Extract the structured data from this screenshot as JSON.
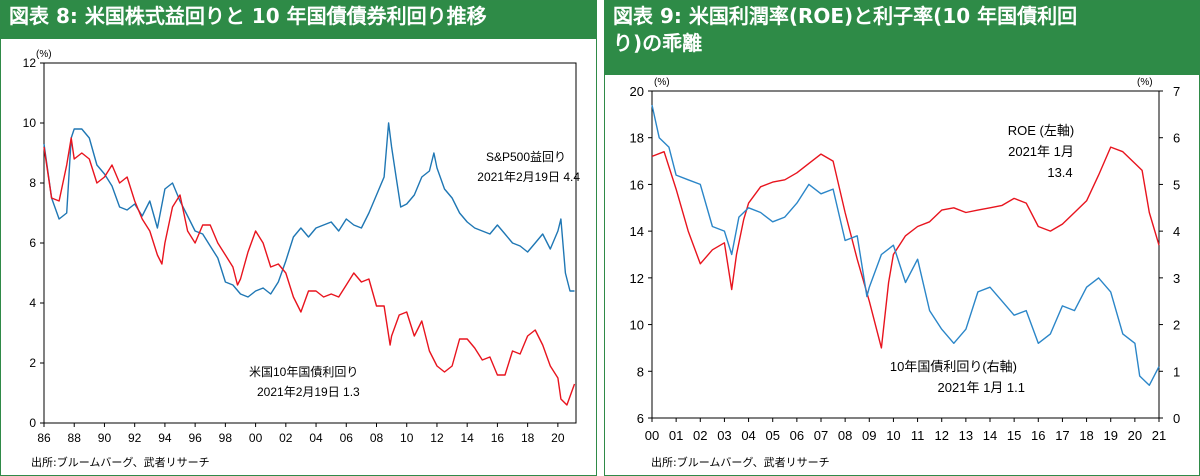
{
  "charts": [
    {
      "title": "図表 8: 米国株式益回りと 10 年国債債券利回り推移",
      "source": "出所:ブルームバーグ、武者リサーチ",
      "unit_left": "(%)"
    },
    {
      "title_line1": "図表 9: 米国利潤率(ROE)と利子率(10 年国債利回",
      "title_line2": "り)の乖離",
      "source": "出所:ブルームバーグ、武者リサーチ",
      "unit_left": "(%)",
      "unit_right": "(%)"
    }
  ],
  "chart_data": [
    {
      "type": "line",
      "title": "図表 8: 米国株式益回りと 10 年国債債券利回り推移",
      "x_tick_labels": [
        "86",
        "88",
        "90",
        "92",
        "94",
        "96",
        "98",
        "00",
        "02",
        "04",
        "06",
        "08",
        "10",
        "12",
        "14",
        "16",
        "18",
        "20"
      ],
      "xlim": [
        1986,
        2021.2
      ],
      "ylim": [
        0,
        12
      ],
      "y_ticks": [
        0,
        2,
        4,
        6,
        8,
        10,
        12
      ],
      "y_unit": "(%)",
      "series": [
        {
          "name": "S&P500益回り",
          "color": "#1f77b4",
          "x": [
            1986,
            1986.5,
            1987,
            1987.5,
            1987.8,
            1988,
            1988.5,
            1989,
            1989.5,
            1990,
            1990.5,
            1991,
            1991.5,
            1992,
            1992.5,
            1993,
            1993.5,
            1994,
            1994.5,
            1995,
            1995.5,
            1996,
            1996.5,
            1997,
            1997.5,
            1998,
            1998.5,
            1999,
            1999.5,
            2000,
            2000.5,
            2001,
            2001.5,
            2002,
            2002.5,
            2003,
            2003.5,
            2004,
            2004.5,
            2005,
            2005.5,
            2006,
            2006.5,
            2007,
            2007.5,
            2008,
            2008.5,
            2008.8,
            2009,
            2009.3,
            2009.6,
            2010,
            2010.5,
            2011,
            2011.5,
            2011.8,
            2012,
            2012.5,
            2013,
            2013.5,
            2014,
            2014.5,
            2015,
            2015.5,
            2016,
            2016.5,
            2017,
            2017.5,
            2018,
            2018.5,
            2019,
            2019.5,
            2020,
            2020.2,
            2020.5,
            2020.8,
            2021.1
          ],
          "y": [
            9.3,
            7.5,
            6.8,
            7.0,
            9.5,
            9.8,
            9.8,
            9.5,
            8.6,
            8.3,
            7.9,
            7.2,
            7.1,
            7.3,
            6.9,
            7.4,
            6.5,
            7.8,
            8.0,
            7.4,
            6.9,
            6.4,
            6.3,
            5.9,
            5.5,
            4.7,
            4.6,
            4.3,
            4.2,
            4.4,
            4.5,
            4.3,
            4.7,
            5.4,
            6.2,
            6.5,
            6.2,
            6.5,
            6.6,
            6.7,
            6.4,
            6.8,
            6.6,
            6.5,
            7.0,
            7.6,
            8.2,
            10.0,
            9.2,
            8.2,
            7.2,
            7.3,
            7.6,
            8.2,
            8.4,
            9.0,
            8.5,
            7.8,
            7.5,
            7.0,
            6.7,
            6.5,
            6.4,
            6.3,
            6.6,
            6.3,
            6.0,
            5.9,
            5.7,
            6.0,
            6.3,
            5.8,
            6.4,
            6.8,
            5.0,
            4.4,
            4.4
          ]
        },
        {
          "name": "米国10年国債利回り",
          "color": "#e8141e",
          "x": [
            1986,
            1986.5,
            1987,
            1987.5,
            1987.8,
            1988,
            1988.5,
            1989,
            1989.5,
            1990,
            1990.5,
            1991,
            1991.5,
            1992,
            1992.5,
            1993,
            1993.5,
            1993.8,
            1994,
            1994.5,
            1995,
            1995.5,
            1996,
            1996.5,
            1997,
            1997.5,
            1998,
            1998.5,
            1998.8,
            1999,
            1999.5,
            2000,
            2000.5,
            2001,
            2001.5,
            2002,
            2002.5,
            2003,
            2003.5,
            2004,
            2004.5,
            2005,
            2005.5,
            2006,
            2006.5,
            2007,
            2007.5,
            2008,
            2008.5,
            2008.9,
            2009,
            2009.5,
            2010,
            2010.5,
            2011,
            2011.5,
            2012,
            2012.5,
            2013,
            2013.5,
            2014,
            2014.5,
            2015,
            2015.5,
            2016,
            2016.5,
            2017,
            2017.5,
            2018,
            2018.5,
            2019,
            2019.5,
            2020,
            2020.2,
            2020.6,
            2021.1
          ],
          "y": [
            9.2,
            7.5,
            7.4,
            8.6,
            9.5,
            8.8,
            9.0,
            8.8,
            8.0,
            8.2,
            8.6,
            8.0,
            8.2,
            7.4,
            6.8,
            6.4,
            5.6,
            5.3,
            6.0,
            7.2,
            7.6,
            6.4,
            6.0,
            6.6,
            6.6,
            6.0,
            5.6,
            5.2,
            4.6,
            4.8,
            5.7,
            6.4,
            6.0,
            5.2,
            5.3,
            5.0,
            4.2,
            3.7,
            4.4,
            4.4,
            4.2,
            4.3,
            4.2,
            4.6,
            5.0,
            4.7,
            4.8,
            3.9,
            3.9,
            2.6,
            2.9,
            3.6,
            3.7,
            2.9,
            3.4,
            2.4,
            1.9,
            1.7,
            1.9,
            2.8,
            2.8,
            2.5,
            2.1,
            2.2,
            1.6,
            1.6,
            2.4,
            2.3,
            2.9,
            3.1,
            2.6,
            1.9,
            1.5,
            0.8,
            0.6,
            1.3
          ]
        }
      ],
      "annotations": [
        {
          "text": "S&P500益回り"
        },
        {
          "text": "2021年2月19日  4.4"
        },
        {
          "text": "米国10年国債利回り"
        },
        {
          "text": "2021年2月19日    1.3"
        }
      ]
    },
    {
      "type": "line",
      "title": "図表 9: 米国利潤率(ROE)と利子率(10 年国債利回り)の乖離",
      "x_tick_labels": [
        "00",
        "01",
        "02",
        "03",
        "04",
        "05",
        "06",
        "07",
        "08",
        "09",
        "10",
        "11",
        "12",
        "13",
        "14",
        "15",
        "16",
        "17",
        "18",
        "19",
        "20",
        "21"
      ],
      "xlim": [
        2000,
        2021
      ],
      "ylim_left": [
        6,
        20
      ],
      "y_ticks_left": [
        6,
        8,
        10,
        12,
        14,
        16,
        18,
        20
      ],
      "ylim_right": [
        0,
        7
      ],
      "y_ticks_right": [
        0,
        1,
        2,
        3,
        4,
        5,
        6,
        7
      ],
      "series": [
        {
          "name": "ROE (左軸)",
          "axis": "left",
          "color": "#e8141e",
          "x": [
            2000,
            2000.5,
            2001,
            2001.5,
            2002,
            2002.5,
            2003,
            2003.3,
            2003.5,
            2003.8,
            2004,
            2004.5,
            2005,
            2005.5,
            2006,
            2006.5,
            2007,
            2007.5,
            2008,
            2008.5,
            2009,
            2009.5,
            2009.8,
            2010,
            2010.5,
            2011,
            2011.5,
            2012,
            2012.5,
            2013,
            2013.5,
            2014,
            2014.5,
            2015,
            2015.5,
            2016,
            2016.5,
            2017,
            2017.5,
            2018,
            2018.5,
            2019,
            2019.5,
            2020,
            2020.3,
            2020.6,
            2021
          ],
          "y": [
            17.2,
            17.4,
            15.8,
            14.0,
            12.6,
            13.2,
            13.5,
            11.5,
            13.0,
            14.5,
            15.2,
            15.9,
            16.1,
            16.2,
            16.5,
            16.9,
            17.3,
            17.0,
            14.8,
            12.8,
            11.0,
            9.0,
            11.8,
            13.0,
            13.8,
            14.2,
            14.4,
            14.9,
            15.0,
            14.8,
            14.9,
            15.0,
            15.1,
            15.4,
            15.2,
            14.2,
            14.0,
            14.3,
            14.8,
            15.3,
            16.4,
            17.6,
            17.4,
            16.9,
            16.6,
            14.8,
            13.4
          ]
        },
        {
          "name": "10年国債利回り(右軸)",
          "axis": "right",
          "color": "#2b86c8",
          "x": [
            2000,
            2000.3,
            2000.7,
            2001,
            2001.5,
            2002,
            2002.5,
            2003,
            2003.3,
            2003.6,
            2004,
            2004.5,
            2005,
            2005.5,
            2006,
            2006.5,
            2007,
            2007.5,
            2008,
            2008.5,
            2008.9,
            2009,
            2009.5,
            2010,
            2010.5,
            2011,
            2011.5,
            2012,
            2012.5,
            2013,
            2013.5,
            2014,
            2014.5,
            2015,
            2015.5,
            2016,
            2016.5,
            2017,
            2017.5,
            2018,
            2018.5,
            2019,
            2019.5,
            2020,
            2020.2,
            2020.6,
            2021
          ],
          "y": [
            6.7,
            6.0,
            5.8,
            5.2,
            5.1,
            5.0,
            4.1,
            4.0,
            3.5,
            4.3,
            4.5,
            4.4,
            4.2,
            4.3,
            4.6,
            5.0,
            4.8,
            4.9,
            3.8,
            3.9,
            2.6,
            2.8,
            3.5,
            3.7,
            2.9,
            3.4,
            2.3,
            1.9,
            1.6,
            1.9,
            2.7,
            2.8,
            2.5,
            2.2,
            2.3,
            1.6,
            1.8,
            2.4,
            2.3,
            2.8,
            3.0,
            2.7,
            1.8,
            1.6,
            0.9,
            0.7,
            1.1
          ]
        }
      ],
      "annotations": [
        {
          "text": "ROE (左軸)"
        },
        {
          "text": "2021年 1月"
        },
        {
          "text": "13.4"
        },
        {
          "text": "10年国債利回り(右軸)"
        },
        {
          "text": "2021年 1月   1.1"
        }
      ]
    }
  ]
}
